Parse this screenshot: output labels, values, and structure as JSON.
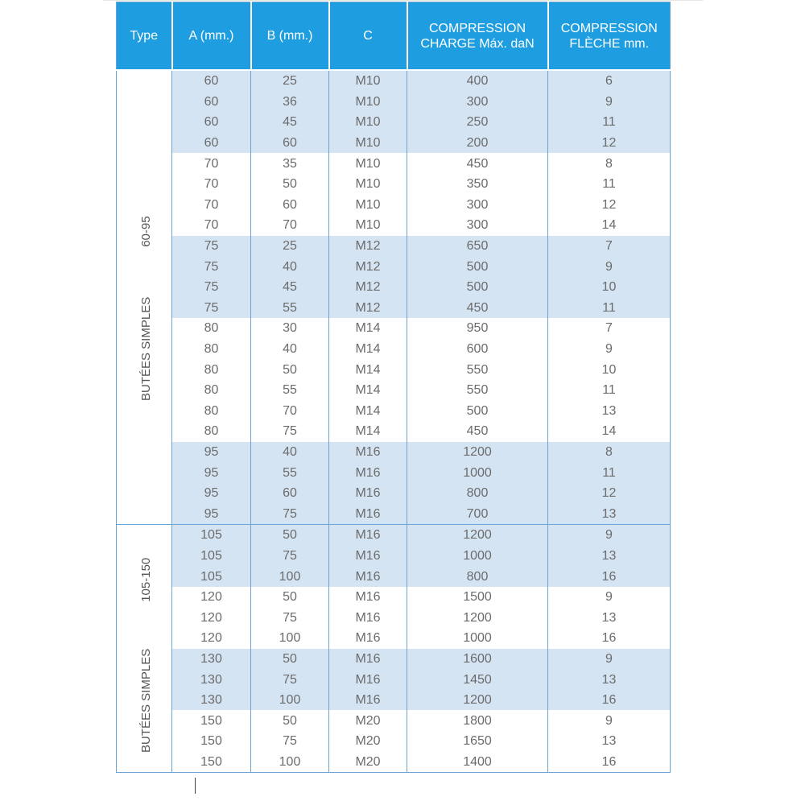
{
  "headers": [
    "Type",
    "A (mm.)",
    "B (mm.)",
    "C",
    "COMPRESSION CHARGE Máx. daN",
    "COMPRESSION FLÈCHE mm."
  ],
  "groups": [
    {
      "type_label": "BUTÉES SIMPLES",
      "type_range": "60-95",
      "rows": [
        [
          "60",
          "25",
          "M10",
          "400",
          "6"
        ],
        [
          "60",
          "36",
          "M10",
          "300",
          "9"
        ],
        [
          "60",
          "45",
          "M10",
          "250",
          "11"
        ],
        [
          "60",
          "60",
          "M10",
          "200",
          "12"
        ],
        [
          "70",
          "35",
          "M10",
          "450",
          "8"
        ],
        [
          "70",
          "50",
          "M10",
          "350",
          "11"
        ],
        [
          "70",
          "60",
          "M10",
          "300",
          "12"
        ],
        [
          "70",
          "70",
          "M10",
          "300",
          "14"
        ],
        [
          "75",
          "25",
          "M12",
          "650",
          "7"
        ],
        [
          "75",
          "40",
          "M12",
          "500",
          "9"
        ],
        [
          "75",
          "45",
          "M12",
          "500",
          "10"
        ],
        [
          "75",
          "55",
          "M12",
          "450",
          "11"
        ],
        [
          "80",
          "30",
          "M14",
          "950",
          "7"
        ],
        [
          "80",
          "40",
          "M14",
          "600",
          "9"
        ],
        [
          "80",
          "50",
          "M14",
          "550",
          "10"
        ],
        [
          "80",
          "55",
          "M14",
          "550",
          "11"
        ],
        [
          "80",
          "70",
          "M14",
          "500",
          "13"
        ],
        [
          "80",
          "75",
          "M14",
          "450",
          "14"
        ],
        [
          "95",
          "40",
          "M16",
          "1200",
          "8"
        ],
        [
          "95",
          "55",
          "M16",
          "1000",
          "11"
        ],
        [
          "95",
          "60",
          "M16",
          "800",
          "12"
        ],
        [
          "95",
          "75",
          "M16",
          "700",
          "13"
        ]
      ]
    },
    {
      "type_label": "BUTÉES SIMPLES",
      "type_range": "105-150",
      "rows": [
        [
          "105",
          "50",
          "M16",
          "1200",
          "9"
        ],
        [
          "105",
          "75",
          "M16",
          "1000",
          "13"
        ],
        [
          "105",
          "100",
          "M16",
          "800",
          "16"
        ],
        [
          "120",
          "50",
          "M16",
          "1500",
          "9"
        ],
        [
          "120",
          "75",
          "M16",
          "1200",
          "13"
        ],
        [
          "120",
          "100",
          "M16",
          "1000",
          "16"
        ],
        [
          "130",
          "50",
          "M16",
          "1600",
          "9"
        ],
        [
          "130",
          "75",
          "M16",
          "1450",
          "13"
        ],
        [
          "130",
          "100",
          "M16",
          "1200",
          "16"
        ],
        [
          "150",
          "50",
          "M20",
          "1800",
          "9"
        ],
        [
          "150",
          "75",
          "M20",
          "1650",
          "13"
        ],
        [
          "150",
          "100",
          "M20",
          "1400",
          "16"
        ]
      ]
    }
  ],
  "colors": {
    "header_bg": "#1e9ee0",
    "shade": "#d5e4f3",
    "border": "#6aa4d6"
  }
}
